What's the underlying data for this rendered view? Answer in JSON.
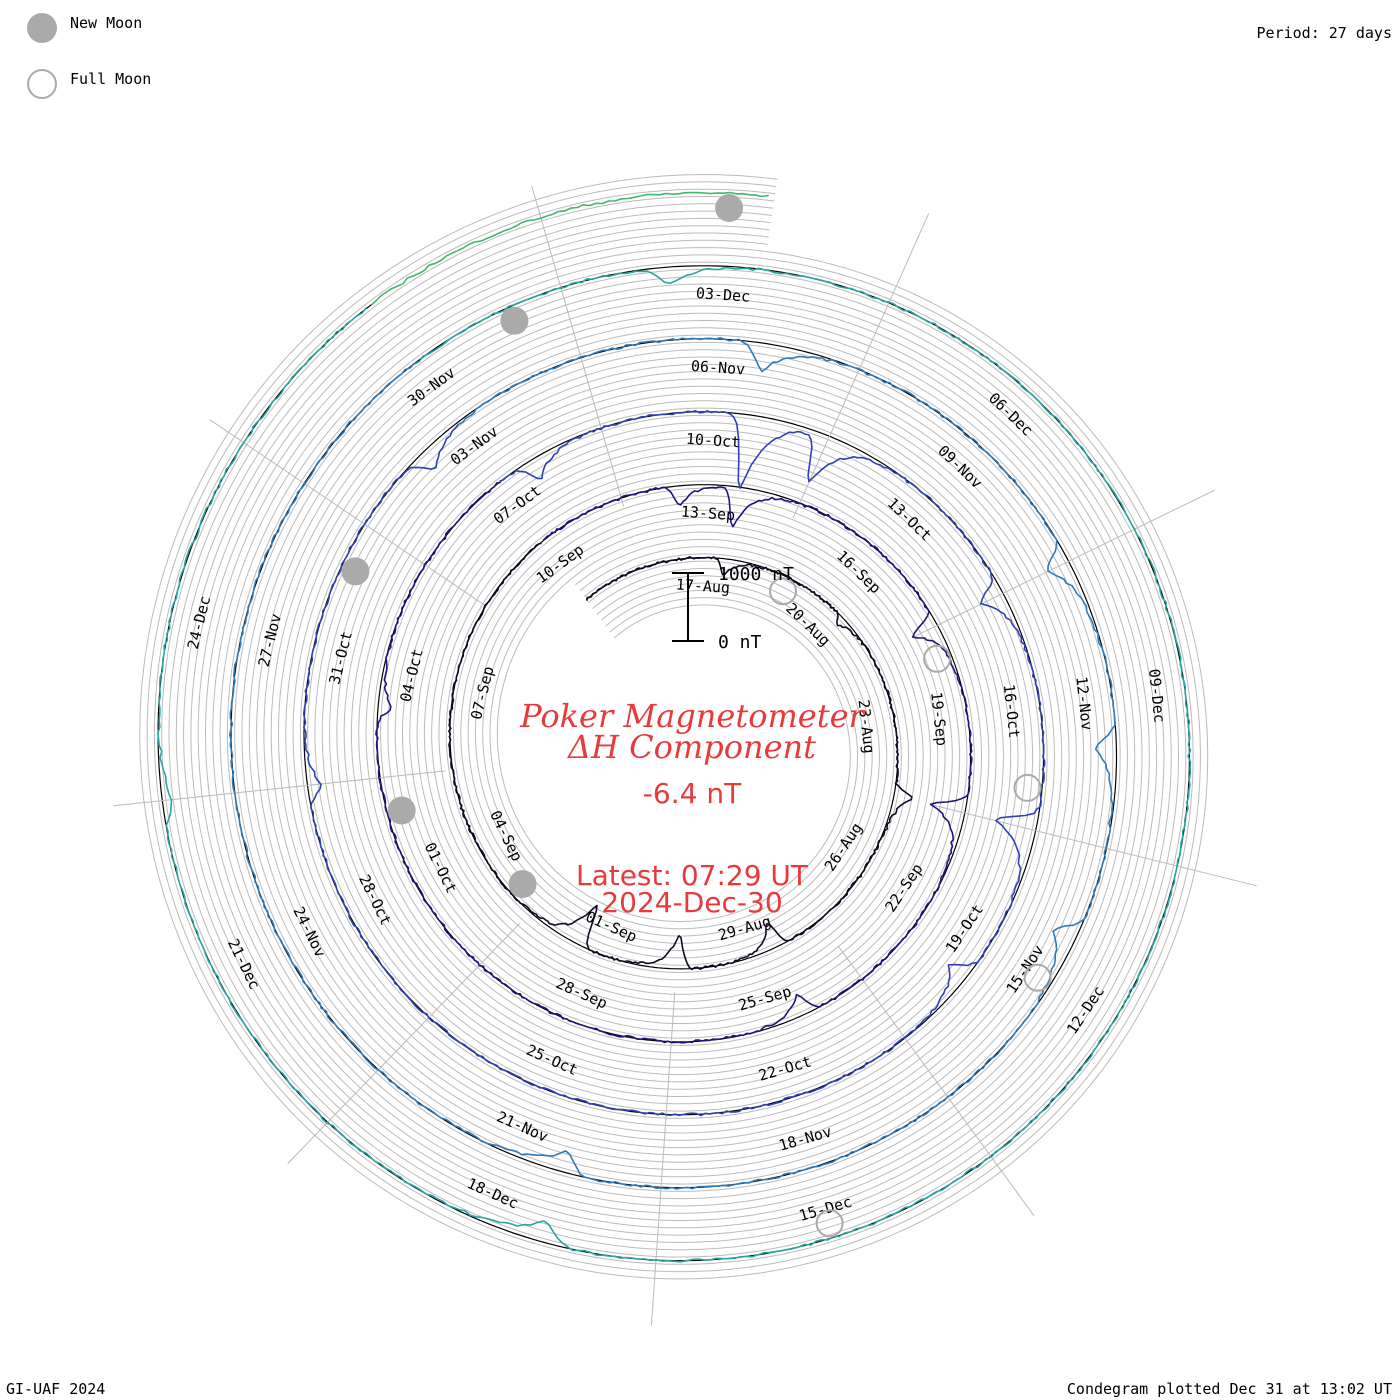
{
  "legend": {
    "new_moon": "New Moon",
    "full_moon": "Full Moon",
    "new_moon_color": "#aaaaaa",
    "full_moon_color": "#aaaaaa"
  },
  "header": {
    "period": "Period: 27 days"
  },
  "footer": {
    "credit": "GI-UAF 2024",
    "plotted": "Condegram plotted Dec 31 at 13:02 UT"
  },
  "center": {
    "title_line1": "Poker Magnetometer",
    "title_line2": "ΔH Component",
    "value": "-6.4 nT",
    "latest_time": "Latest: 07:29 UT",
    "latest_date": "2024-Dec-30",
    "accent": "#e8393b"
  },
  "chart_data": {
    "type": "line",
    "form": "spiral condegram",
    "period_days": 27,
    "start_date": "2024-Aug-14",
    "end_date": "2024-Dec-30",
    "scale_bar": {
      "top_label": "1000 nT",
      "bottom_label": "0 nT",
      "nT": 1000
    },
    "grid": true,
    "date_labels": [
      "17-Aug",
      "20-Aug",
      "23-Aug",
      "26-Aug",
      "29-Aug",
      "01-Sep",
      "04-Sep",
      "07-Sep",
      "10-Sep",
      "13-Sep",
      "16-Sep",
      "19-Sep",
      "22-Sep",
      "25-Sep",
      "28-Sep",
      "01-Oct",
      "04-Oct",
      "07-Oct",
      "10-Oct",
      "13-Oct",
      "16-Oct",
      "19-Oct",
      "22-Oct",
      "25-Oct",
      "28-Oct",
      "31-Oct",
      "03-Nov",
      "06-Nov",
      "09-Nov",
      "12-Nov",
      "15-Nov",
      "18-Nov",
      "21-Nov",
      "24-Nov",
      "27-Nov",
      "30-Nov",
      "03-Dec",
      "06-Dec",
      "09-Dec",
      "12-Dec",
      "15-Dec",
      "18-Dec",
      "21-Dec",
      "24-Dec"
    ],
    "new_moons": [
      "2024-Sep-03",
      "2024-Oct-02",
      "2024-Nov-01",
      "2024-Dec-01",
      "2024-Dec-30"
    ],
    "full_moons": [
      "2024-Aug-19",
      "2024-Sep-18",
      "2024-Oct-17",
      "2024-Nov-15",
      "2024-Dec-15"
    ],
    "events_nT": [
      {
        "date": "2024-Aug-17",
        "dH": -250
      },
      {
        "date": "2024-Aug-20",
        "dH": -120
      },
      {
        "date": "2024-Aug-24",
        "dH": 280
      },
      {
        "date": "2024-Aug-28",
        "dH": -380
      },
      {
        "date": "2024-Aug-30",
        "dH": -500
      },
      {
        "date": "2024-Sep-01",
        "dH": -650
      },
      {
        "date": "2024-Sep-12",
        "dH": -280
      },
      {
        "date": "2024-Sep-13",
        "dH": -600
      },
      {
        "date": "2024-Sep-17",
        "dH": -400
      },
      {
        "date": "2024-Sep-20",
        "dH": -500
      },
      {
        "date": "2024-Sep-24",
        "dH": -300
      },
      {
        "date": "2024-Oct-03",
        "dH": -200
      },
      {
        "date": "2024-Oct-07",
        "dH": -300
      },
      {
        "date": "2024-Oct-10",
        "dH": -1100
      },
      {
        "date": "2024-Oct-11",
        "dH": -700
      },
      {
        "date": "2024-Oct-14",
        "dH": -350
      },
      {
        "date": "2024-Oct-17",
        "dH": -600
      },
      {
        "date": "2024-Oct-19",
        "dH": -300
      },
      {
        "date": "2024-Oct-29",
        "dH": -200
      },
      {
        "date": "2024-Nov-02",
        "dH": -300
      },
      {
        "date": "2024-Nov-06",
        "dH": -400
      },
      {
        "date": "2024-Nov-10",
        "dH": -350
      },
      {
        "date": "2024-Nov-12",
        "dH": -300
      },
      {
        "date": "2024-Nov-14",
        "dH": -350
      },
      {
        "date": "2024-Nov-20",
        "dH": -300
      },
      {
        "date": "2024-Dec-02",
        "dH": -250
      },
      {
        "date": "2024-Dec-17",
        "dH": -300
      },
      {
        "date": "2024-Dec-22",
        "dH": -150
      }
    ],
    "series_colors": [
      "#0e0a24",
      "#1e1580",
      "#2f41b5",
      "#2e7bb8",
      "#27a6a4",
      "#3eb86a",
      "#8dbf2d",
      "#a8b31b",
      "#c7381c",
      "#b01010"
    ],
    "ring_color": "#000000",
    "grid_color": "#bbbbbb"
  }
}
